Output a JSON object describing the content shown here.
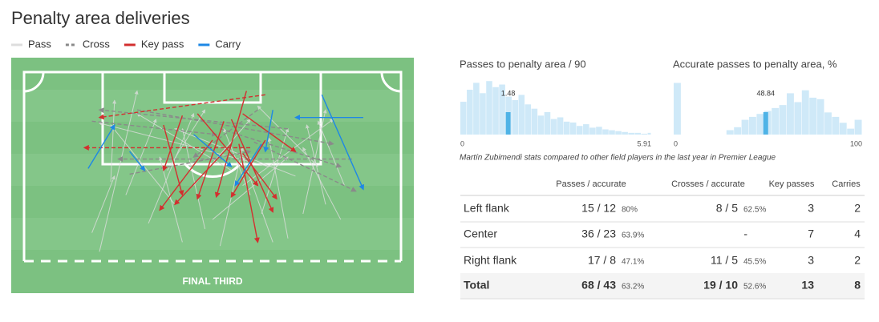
{
  "header": {
    "title": "Penalty area deliveries"
  },
  "legend": [
    {
      "name": "Pass",
      "color": "#dddddd",
      "dashed": false
    },
    {
      "name": "Cross",
      "color": "#8a8a8a",
      "dashed": true
    },
    {
      "name": "Key pass",
      "color": "#d32f2f",
      "dashed": false
    },
    {
      "name": "Carry",
      "color": "#1e88e5",
      "dashed": false
    }
  ],
  "pitch": {
    "label": "FINAL THIRD",
    "deliveries": [
      {
        "kind": 0,
        "x1": 20,
        "y1": 95,
        "x2": 30,
        "y2": 10
      },
      {
        "kind": 0,
        "x1": 23,
        "y1": 58,
        "x2": 24,
        "y2": 15
      },
      {
        "kind": 0,
        "x1": 40,
        "y1": 70,
        "x2": 23,
        "y2": 28
      },
      {
        "kind": 0,
        "x1": 48,
        "y1": 83,
        "x2": 42,
        "y2": 30
      },
      {
        "kind": 0,
        "x1": 52,
        "y1": 92,
        "x2": 58,
        "y2": 40
      },
      {
        "kind": 0,
        "x1": 60,
        "y1": 65,
        "x2": 53,
        "y2": 30
      },
      {
        "kind": 0,
        "x1": 63,
        "y1": 75,
        "x2": 70,
        "y2": 30
      },
      {
        "kind": 0,
        "x1": 70,
        "y1": 88,
        "x2": 65,
        "y2": 35
      },
      {
        "kind": 0,
        "x1": 74,
        "y1": 75,
        "x2": 80,
        "y2": 20
      },
      {
        "kind": 0,
        "x1": 80,
        "y1": 70,
        "x2": 75,
        "y2": 28
      },
      {
        "kind": 0,
        "x1": 85,
        "y1": 60,
        "x2": 78,
        "y2": 26
      },
      {
        "kind": 0,
        "x1": 45,
        "y1": 60,
        "x2": 60,
        "y2": 25
      },
      {
        "kind": 0,
        "x1": 33,
        "y1": 80,
        "x2": 45,
        "y2": 22
      },
      {
        "kind": 0,
        "x1": 38,
        "y1": 52,
        "x2": 48,
        "y2": 20
      },
      {
        "kind": 0,
        "x1": 55,
        "y1": 52,
        "x2": 30,
        "y2": 22
      },
      {
        "kind": 0,
        "x1": 72,
        "y1": 55,
        "x2": 40,
        "y2": 30
      },
      {
        "kind": 0,
        "x1": 78,
        "y1": 50,
        "x2": 62,
        "y2": 18
      },
      {
        "kind": 0,
        "x1": 27,
        "y1": 65,
        "x2": 35,
        "y2": 25
      },
      {
        "kind": 0,
        "x1": 65,
        "y1": 50,
        "x2": 20,
        "y2": 27
      },
      {
        "kind": 0,
        "x1": 18,
        "y1": 85,
        "x2": 24,
        "y2": 55
      },
      {
        "kind": 0,
        "x1": 50,
        "y1": 78,
        "x2": 70,
        "y2": 45
      },
      {
        "kind": 0,
        "x1": 66,
        "y1": 90,
        "x2": 58,
        "y2": 45
      },
      {
        "kind": 0,
        "x1": 84,
        "y1": 78,
        "x2": 74,
        "y2": 40
      },
      {
        "kind": 0,
        "x1": 42,
        "y1": 90,
        "x2": 36,
        "y2": 45
      },
      {
        "kind": 0,
        "x1": 58,
        "y1": 60,
        "x2": 82,
        "y2": 25
      },
      {
        "kind": 1,
        "x1": 30,
        "y1": 20,
        "x2": 82,
        "y2": 38
      },
      {
        "kind": 1,
        "x1": 18,
        "y1": 26,
        "x2": 51,
        "y2": 33
      },
      {
        "kind": 1,
        "x1": 52,
        "y1": 30,
        "x2": 84,
        "y2": 50
      },
      {
        "kind": 1,
        "x1": 61,
        "y1": 37,
        "x2": 88,
        "y2": 63
      },
      {
        "kind": 1,
        "x1": 87,
        "y1": 46,
        "x2": 25,
        "y2": 46
      },
      {
        "kind": 1,
        "x1": 28,
        "y1": 54,
        "x2": 60,
        "y2": 42
      },
      {
        "kind": 1,
        "x1": 70,
        "y1": 30,
        "x2": 20,
        "y2": 20
      },
      {
        "kind": 1,
        "x1": 62,
        "y1": 20,
        "x2": 45,
        "y2": 45
      },
      {
        "kind": 2,
        "x1": 59,
        "y1": 10,
        "x2": 51,
        "y2": 66
      },
      {
        "kind": 2,
        "x1": 55,
        "y1": 38,
        "x2": 40,
        "y2": 70
      },
      {
        "kind": 2,
        "x1": 50,
        "y1": 36,
        "x2": 36,
        "y2": 73
      },
      {
        "kind": 2,
        "x1": 37,
        "y1": 28,
        "x2": 42,
        "y2": 65
      },
      {
        "kind": 2,
        "x1": 53,
        "y1": 26,
        "x2": 46,
        "y2": 67
      },
      {
        "kind": 2,
        "x1": 46,
        "y1": 22,
        "x2": 62,
        "y2": 60
      },
      {
        "kind": 2,
        "x1": 55,
        "y1": 25,
        "x2": 66,
        "y2": 74
      },
      {
        "kind": 2,
        "x1": 57,
        "y1": 38,
        "x2": 62,
        "y2": 90
      },
      {
        "kind": 2,
        "x1": 58,
        "y1": 43,
        "x2": 67,
        "y2": 67
      },
      {
        "kind": 2,
        "x1": 64,
        "y1": 36,
        "x2": 55,
        "y2": 66
      },
      {
        "kind": 2,
        "x1": 58,
        "y1": 22,
        "x2": 72,
        "y2": 42
      },
      {
        "kind": 2,
        "x1": 42,
        "y1": 23,
        "x2": 37,
        "y2": 52
      },
      {
        "kind": 2,
        "x1": 60,
        "y1": 40,
        "x2": 16,
        "y2": 40,
        "dashed": true
      },
      {
        "kind": 2,
        "x1": 64,
        "y1": 12,
        "x2": 20,
        "y2": 24,
        "dashed": true
      },
      {
        "kind": 3,
        "x1": 17,
        "y1": 51,
        "x2": 24,
        "y2": 28
      },
      {
        "kind": 3,
        "x1": 79,
        "y1": 12,
        "x2": 90,
        "y2": 62
      },
      {
        "kind": 3,
        "x1": 28,
        "y1": 42,
        "x2": 32,
        "y2": 52
      },
      {
        "kind": 3,
        "x1": 90,
        "y1": 24,
        "x2": 72,
        "y2": 24
      },
      {
        "kind": 3,
        "x1": 63,
        "y1": 38,
        "x2": 56,
        "y2": 60
      },
      {
        "kind": 3,
        "x1": 66,
        "y1": 20,
        "x2": 64,
        "y2": 42
      },
      {
        "kind": 3,
        "x1": 45,
        "y1": 33,
        "x2": 55,
        "y2": 50
      }
    ]
  },
  "chart_data": [
    {
      "type": "histogram",
      "title": "Passes to penalty area / 90",
      "color": "#cfe9f8",
      "highlight_color": "#4fb3e6",
      "bins": [
        0,
        0.2,
        0.4,
        0.6,
        0.8,
        1,
        1.2,
        1.4,
        1.6,
        1.8,
        2,
        2.2,
        2.4,
        2.6,
        2.8,
        3,
        3.2,
        3.4,
        3.6,
        3.8,
        4,
        4.2,
        4.4,
        4.6,
        4.8,
        5,
        5.2,
        5.4,
        5.6,
        5.8,
        5.91
      ],
      "values": [
        38,
        52,
        60,
        48,
        62,
        55,
        58,
        44,
        40,
        46,
        35,
        30,
        22,
        26,
        18,
        20,
        15,
        14,
        10,
        12,
        8,
        9,
        6,
        5,
        4,
        3,
        2,
        2,
        1,
        2
      ],
      "ylim": [
        0,
        65
      ],
      "xlim": [
        0,
        5.91
      ],
      "xticks": [
        0,
        5.91
      ],
      "highlight": 1.48
    },
    {
      "type": "histogram",
      "title": "Accurate passes to penalty area, %",
      "color": "#cfe9f8",
      "highlight_color": "#4fb3e6",
      "bins": [
        0,
        4,
        8,
        12,
        16,
        20,
        24,
        28,
        32,
        36,
        40,
        44,
        48,
        52,
        56,
        60,
        64,
        68,
        72,
        76,
        80,
        84,
        88,
        92,
        96,
        100
      ],
      "values": [
        35,
        0,
        0,
        0,
        0,
        0,
        0,
        3,
        5,
        10,
        12,
        14,
        16,
        18,
        20,
        28,
        22,
        30,
        25,
        24,
        15,
        12,
        8,
        4,
        10
      ],
      "ylim": [
        0,
        38
      ],
      "xlim": [
        0,
        100
      ],
      "xticks": [
        0,
        100
      ],
      "highlight": 48.84
    }
  ],
  "note": "Martín Zubimendi stats compared to other field players in the last year in Premier League",
  "table": {
    "columns": [
      "Passes / accurate",
      "Crosses / accurate",
      "Key passes",
      "Carries"
    ],
    "rows": [
      {
        "label": "Left flank",
        "passes": "15 / 12",
        "passes_pct": "80%",
        "crosses": "8 / 5",
        "crosses_pct": "62.5%",
        "key": "3",
        "carries": "2"
      },
      {
        "label": "Center",
        "passes": "36 / 23",
        "passes_pct": "63.9%",
        "crosses": "-",
        "key": "7",
        "carries": "4"
      },
      {
        "label": "Right flank",
        "passes": "17 / 8",
        "passes_pct": "47.1%",
        "crosses": "11 / 5",
        "crosses_pct": "45.5%",
        "key": "3",
        "carries": "2"
      },
      {
        "label": "Total",
        "passes": "68 / 43",
        "passes_pct": "63.2%",
        "crosses": "19 / 10",
        "crosses_pct": "52.6%",
        "key": "13",
        "carries": "8"
      }
    ]
  }
}
